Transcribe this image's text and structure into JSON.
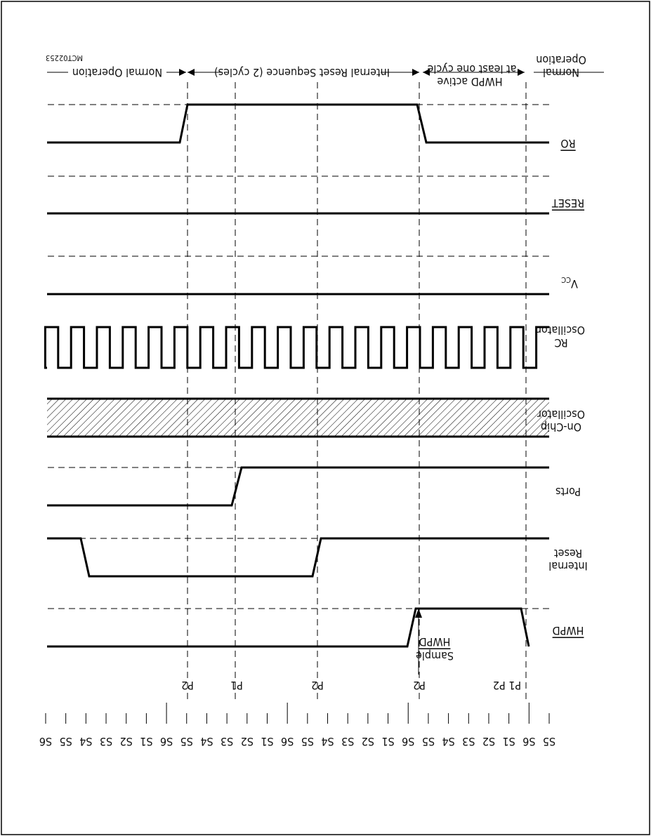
{
  "diagram_id": "MCT02253",
  "phases": {
    "normal_left": "Normal Operation",
    "hwpd_active_line1": "HWPD active",
    "hwpd_active_line2": "at least one cycle",
    "internal_reset": "Internal Reset Sequence (2 cycles)",
    "normal_right": "Normal Operation"
  },
  "signals": {
    "hwpd": "HWPD",
    "internal_reset_line1": "Internal",
    "internal_reset_line2": "Reset",
    "ports": "Ports",
    "onchip_line1": "On-Chip",
    "onchip_line2": "Oscillator",
    "rc_line1": "RC",
    "rc_line2": "Oscillator",
    "vcc": "V",
    "vcc_sub": "CC",
    "reset": "RESET",
    "ro": "RO"
  },
  "annotations": {
    "sample_line1": "Sample",
    "sample_line2": "HWPD"
  },
  "phase_markers": [
    "P1 P2",
    "P2",
    "P2",
    "P1",
    "P2"
  ],
  "state_labels": [
    "S5",
    "S6",
    "S1",
    "S2",
    "S3",
    "S4",
    "S5",
    "S6",
    "S1",
    "S2",
    "S3",
    "S4",
    "S5",
    "S6",
    "S1",
    "S2",
    "S3",
    "S4",
    "S5",
    "S6",
    "S1",
    "S2",
    "S3",
    "S4",
    "S5",
    "S6"
  ]
}
